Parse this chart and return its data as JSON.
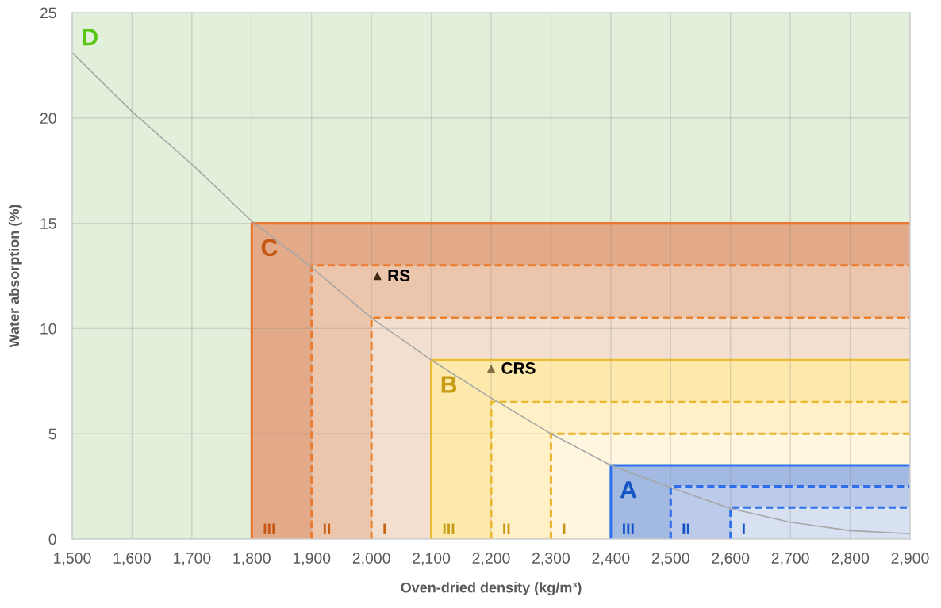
{
  "chart_data": {
    "type": "area",
    "stacked": true,
    "xlabel": "Oven-dried density (kg/m³)",
    "ylabel": "Water absorption (%)",
    "xlim": [
      1500,
      2900
    ],
    "xticks": [
      {
        "value": 1500,
        "label": "1,500"
      },
      {
        "value": 1600,
        "label": "1,600"
      },
      {
        "value": 1700,
        "label": "1,700"
      },
      {
        "value": 1800,
        "label": "1,800"
      },
      {
        "value": 1900,
        "label": "1,900"
      },
      {
        "value": 2000,
        "label": "2,000"
      },
      {
        "value": 2100,
        "label": "2,100"
      },
      {
        "value": 2200,
        "label": "2,200"
      },
      {
        "value": 2300,
        "label": "2,300"
      },
      {
        "value": 2400,
        "label": "2,400"
      },
      {
        "value": 2500,
        "label": "2,500"
      },
      {
        "value": 2600,
        "label": "2,600"
      },
      {
        "value": 2700,
        "label": "2,700"
      },
      {
        "value": 2800,
        "label": "2,800"
      },
      {
        "value": 2900,
        "label": "2,900"
      }
    ],
    "ylim": [
      0,
      25
    ],
    "yticks": [
      0,
      5,
      10,
      15,
      20,
      25
    ],
    "grid": true,
    "x": [
      1500,
      1800,
      1800,
      1900,
      1900,
      2000,
      2000,
      2100,
      2100,
      2200,
      2200,
      2300,
      2300,
      2400,
      2400,
      2500,
      2500,
      2600,
      2600,
      2900
    ],
    "series": [
      {
        "name": "I",
        "color": "#d8e1f1",
        "line_style": "dashed",
        "values": [
          0,
          0,
          0,
          0,
          0,
          0,
          0,
          0,
          0,
          0,
          0,
          0,
          0,
          0,
          0,
          0,
          0,
          0,
          1.5,
          1.5
        ]
      },
      {
        "name": "II",
        "color": "#bccbe9",
        "line_style": "dashed",
        "values": [
          0,
          0,
          0,
          0,
          0,
          0,
          0,
          0,
          0,
          0,
          0,
          0,
          0,
          0,
          0,
          0,
          2.5,
          2.5,
          1,
          1
        ]
      },
      {
        "name": "III",
        "color": "#a2b9e2",
        "line_style": "solid",
        "values": [
          0,
          0,
          0,
          0,
          0,
          0,
          0,
          0,
          0,
          0,
          0,
          0,
          0,
          0,
          3.5,
          3.5,
          1,
          1,
          1,
          1
        ]
      },
      {
        "name": "I",
        "color": "#fff6e0",
        "line_style": "dashed",
        "values": [
          0,
          0,
          0,
          0,
          0,
          0,
          0,
          0,
          0,
          0,
          0,
          0,
          5,
          5,
          1.5,
          1.5,
          1.5,
          1.5,
          1.5,
          1.5
        ]
      },
      {
        "name": "II",
        "color": "#fff0c8",
        "line_style": "dashed",
        "values": [
          0,
          0,
          0,
          0,
          0,
          0,
          0,
          0,
          0,
          0,
          6.5,
          6.5,
          1.5,
          1.5,
          1.5,
          1.5,
          1.5,
          1.5,
          1.5,
          1.5
        ]
      },
      {
        "name": "III",
        "color": "#fde9ac",
        "line_style": "solid",
        "values": [
          0,
          0,
          0,
          0,
          0,
          0,
          0,
          0,
          8.5,
          8.5,
          2,
          2,
          2,
          2,
          2,
          2,
          2,
          2,
          2,
          2
        ]
      },
      {
        "name": "I",
        "color": "#f2dfd0",
        "line_style": "dashed",
        "values": [
          0,
          0,
          0,
          0,
          0,
          0,
          10.5,
          10.5,
          2,
          2,
          2,
          2,
          2,
          2,
          2,
          2,
          2,
          2,
          2,
          2
        ]
      },
      {
        "name": "II",
        "color": "#ecc6ac",
        "line_style": "dashed",
        "values": [
          0,
          0,
          0,
          0,
          13,
          13,
          2.5,
          2.5,
          2.5,
          2.5,
          2.5,
          2.5,
          2.5,
          2.5,
          2.5,
          2.5,
          2.5,
          2.5,
          2.5,
          2.5
        ]
      },
      {
        "name": "III",
        "color": "#e2aa88",
        "line_style": "solid",
        "values": [
          0,
          0,
          15,
          15,
          2,
          2,
          2,
          2,
          2,
          2,
          2,
          2,
          2,
          2,
          2,
          2,
          2,
          2,
          2,
          2
        ]
      },
      {
        "color": "#e2efda",
        "values": [
          25,
          25,
          10,
          10,
          10,
          10,
          10,
          10,
          10,
          10,
          10,
          10,
          10,
          10,
          10,
          10,
          10,
          10,
          10,
          10
        ]
      },
      {
        "type": "line",
        "color": "#a6a6a6",
        "x": [
          1500,
          1600,
          1700,
          1800,
          1900,
          2000,
          2100,
          2200,
          2300,
          2400,
          2500,
          2600,
          2700,
          2800,
          2900
        ],
        "values": [
          23.1,
          20.3,
          17.8,
          15.1,
          12.9,
          10.5,
          8.5,
          6.7,
          5.0,
          3.5,
          2.45,
          1.45,
          0.8,
          0.4,
          0.25
        ]
      },
      {
        "name": "RS",
        "type": "scatter",
        "marker": "triangle",
        "color": "#3f2a14",
        "x": [
          2010
        ],
        "values": [
          12.5
        ]
      },
      {
        "name": "CRS",
        "type": "scatter",
        "marker": "triangle",
        "color": "#7f7346",
        "x": [
          2200
        ],
        "values": [
          8.1
        ]
      }
    ],
    "annotations": [
      {
        "text": "D",
        "x": 1500,
        "y": 25
      },
      {
        "text": "C",
        "x": 1800,
        "y": 15
      },
      {
        "text": "B",
        "x": 2100,
        "y": 8.5
      },
      {
        "text": "A",
        "x": 2400,
        "y": 3.5
      }
    ]
  }
}
